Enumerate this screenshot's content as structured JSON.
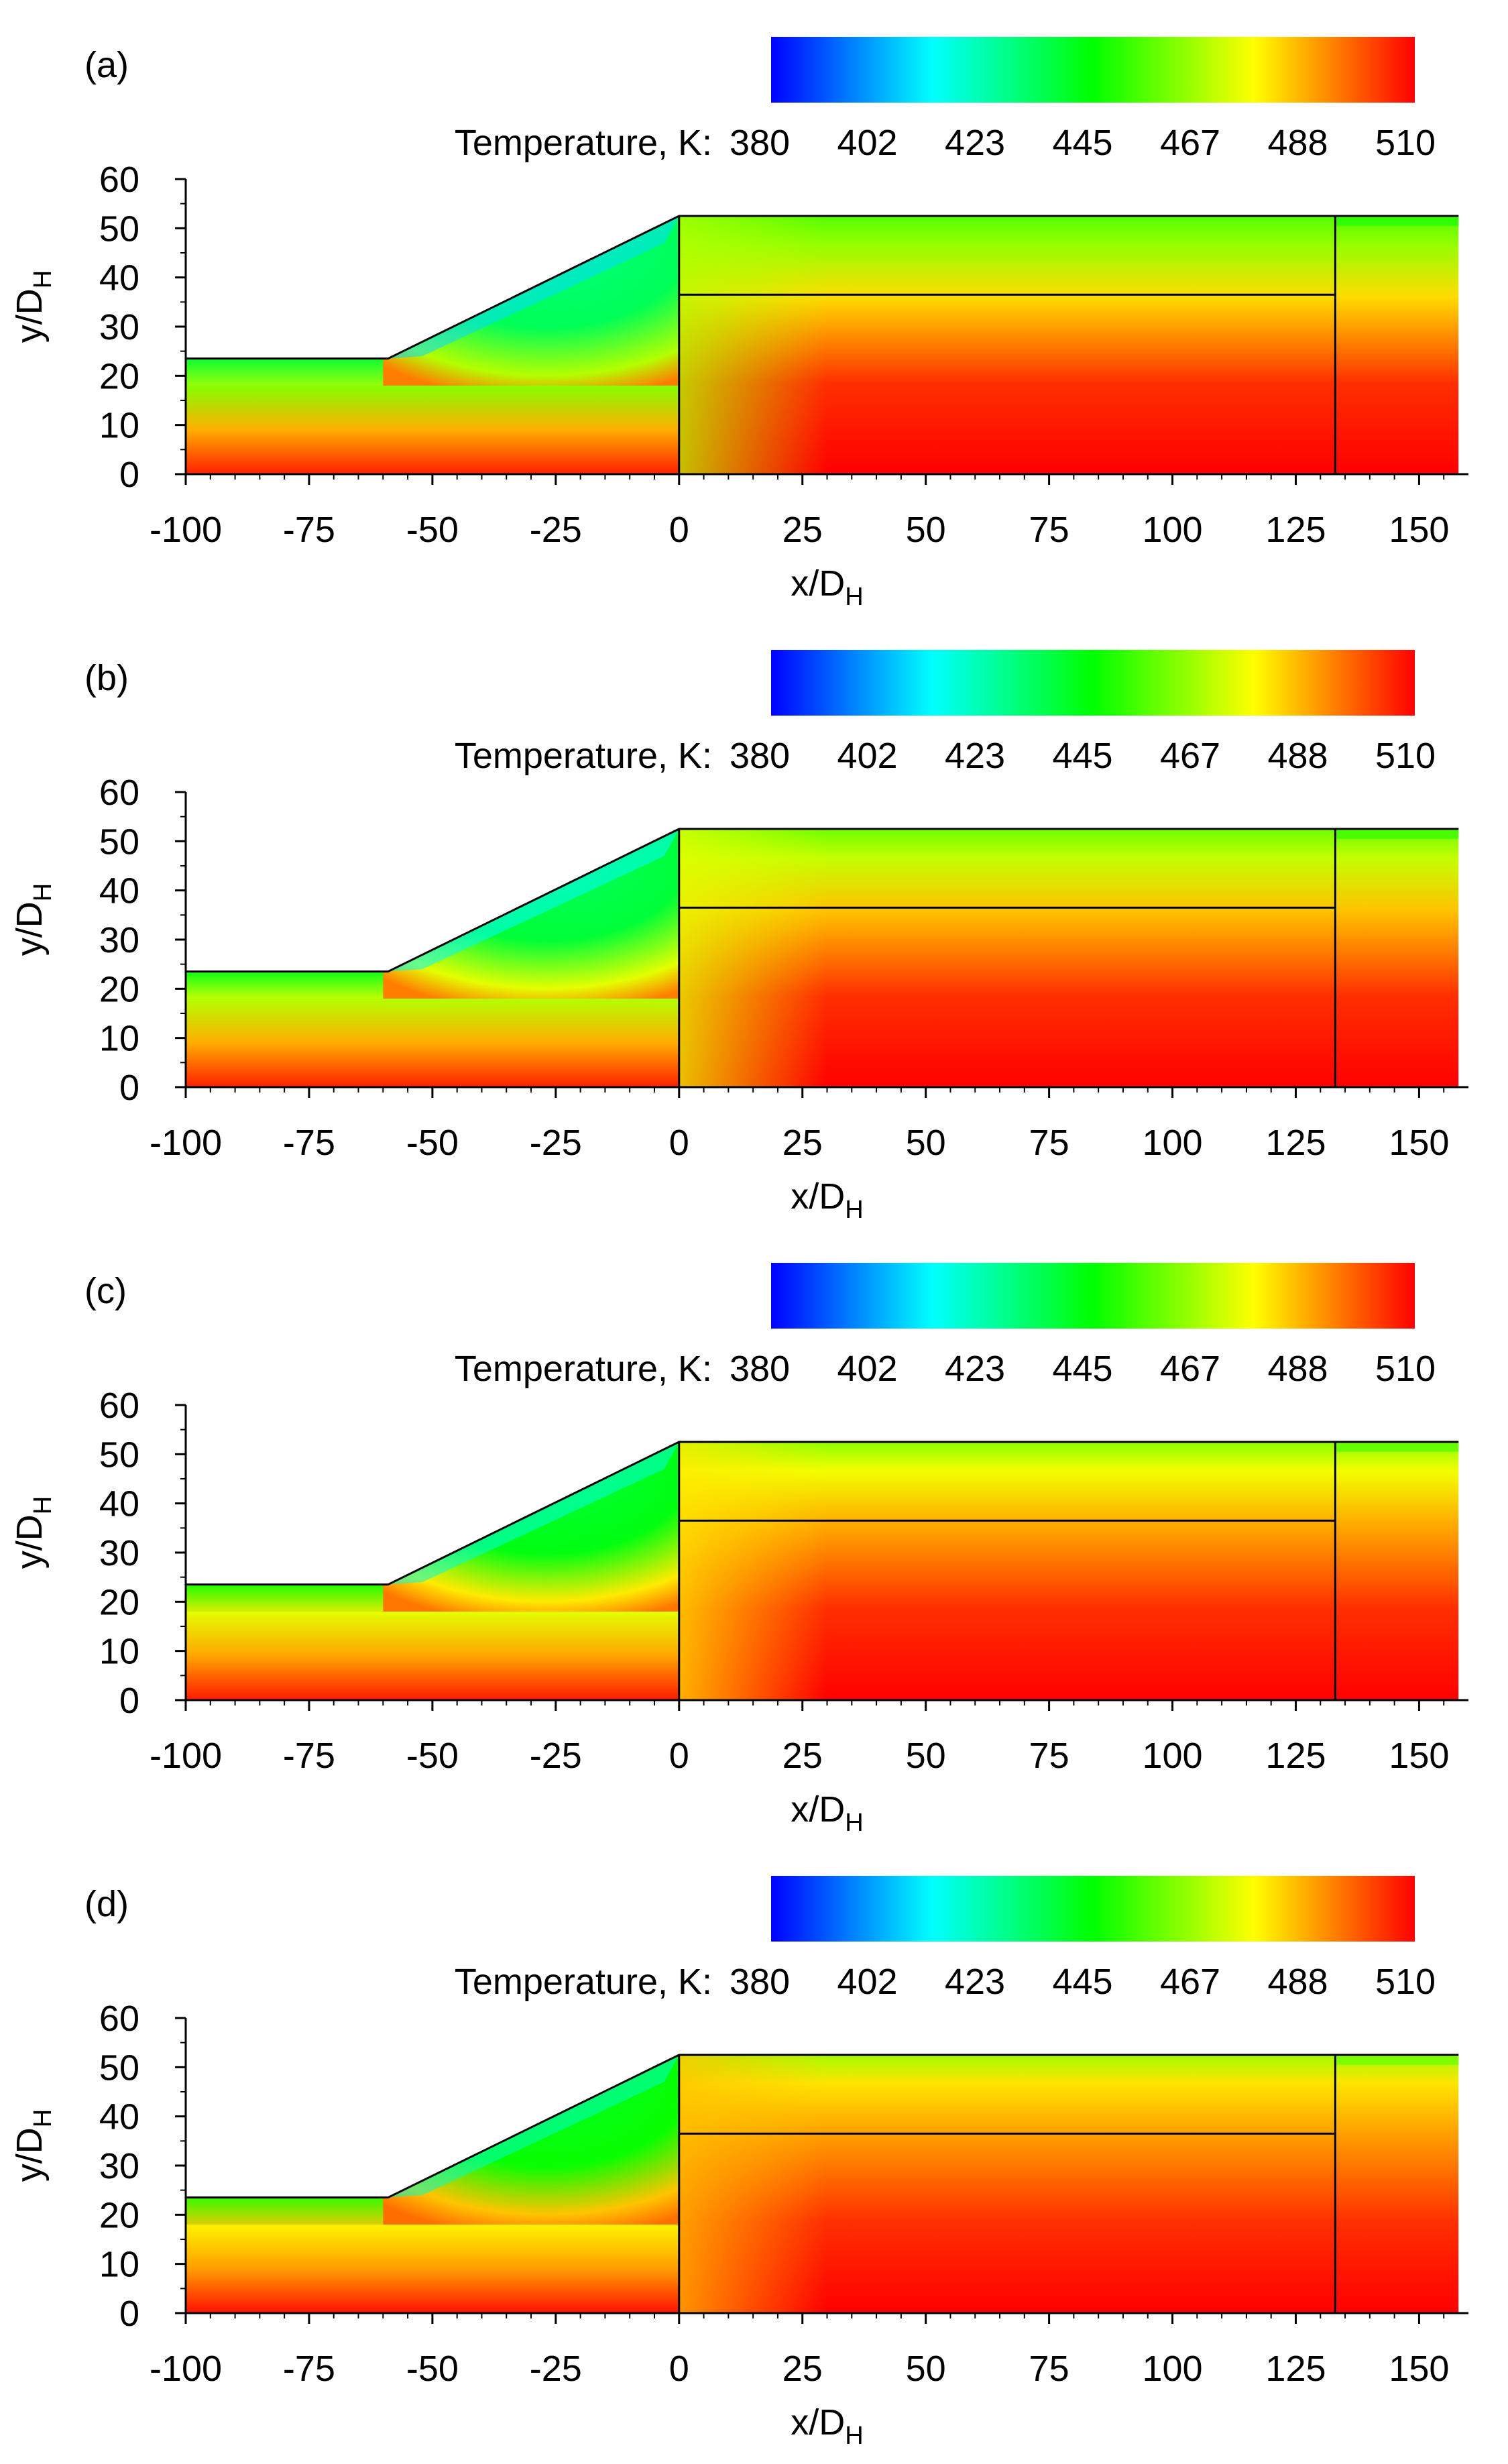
{
  "chart_data": [
    {
      "type": "heatmap",
      "panel_label": "(a)",
      "colorbar": {
        "title": "Temperature, K:",
        "ticks": [
          "380",
          "402",
          "423",
          "445",
          "467",
          "488",
          "510"
        ],
        "range": [
          380,
          510
        ],
        "colors": [
          "#0000ff",
          "#00ffff",
          "#00ff00",
          "#ffff00",
          "#ff0000"
        ]
      },
      "xlabel": "x/D",
      "xlabel_sub": "H",
      "ylabel": "y/D",
      "ylabel_sub": "H",
      "xlim": [
        -100,
        160
      ],
      "ylim": [
        0,
        60
      ],
      "xticks": [
        "-100",
        "-75",
        "-50",
        "-25",
        "0",
        "25",
        "50",
        "75",
        "100",
        "125",
        "150"
      ],
      "yticks": [
        "0",
        "10",
        "20",
        "30",
        "40",
        "50",
        "60"
      ],
      "inlet_centre_K": 504,
      "cool_core_K": 428,
      "bulk_K": 468,
      "wall_K": 455,
      "hot_core_K": 510,
      "edge_K": 482
    },
    {
      "type": "heatmap",
      "panel_label": "(b)",
      "colorbar": {
        "title": "Temperature, K:",
        "ticks": [
          "380",
          "402",
          "423",
          "445",
          "467",
          "488",
          "510"
        ],
        "range": [
          380,
          510
        ],
        "colors": [
          "#0000ff",
          "#00ffff",
          "#00ff00",
          "#ffff00",
          "#ff0000"
        ]
      },
      "xlabel": "x/D",
      "xlabel_sub": "H",
      "ylabel": "y/D",
      "ylabel_sub": "H",
      "xlim": [
        -100,
        160
      ],
      "ylim": [
        0,
        60
      ],
      "xticks": [
        "-100",
        "-75",
        "-50",
        "-25",
        "0",
        "25",
        "50",
        "75",
        "100",
        "125",
        "150"
      ],
      "yticks": [
        "0",
        "10",
        "20",
        "30",
        "40",
        "50",
        "60"
      ],
      "inlet_centre_K": 504,
      "cool_core_K": 432,
      "bulk_K": 474,
      "wall_K": 458,
      "hot_core_K": 510,
      "edge_K": 485
    },
    {
      "type": "heatmap",
      "panel_label": "(c)",
      "colorbar": {
        "title": "Temperature, K:",
        "ticks": [
          "380",
          "402",
          "423",
          "445",
          "467",
          "488",
          "510"
        ],
        "range": [
          380,
          510
        ],
        "colors": [
          "#0000ff",
          "#00ffff",
          "#00ff00",
          "#ffff00",
          "#ff0000"
        ]
      },
      "xlabel": "x/D",
      "xlabel_sub": "H",
      "ylabel": "y/D",
      "ylabel_sub": "H",
      "xlim": [
        -100,
        160
      ],
      "ylim": [
        0,
        60
      ],
      "xticks": [
        "-100",
        "-75",
        "-50",
        "-25",
        "0",
        "25",
        "50",
        "75",
        "100",
        "125",
        "150"
      ],
      "yticks": [
        "0",
        "10",
        "20",
        "30",
        "40",
        "50",
        "60"
      ],
      "inlet_centre_K": 505,
      "cool_core_K": 437,
      "bulk_K": 480,
      "wall_K": 462,
      "hot_core_K": 510,
      "edge_K": 488
    },
    {
      "type": "heatmap",
      "panel_label": "(d)",
      "colorbar": {
        "title": "Temperature, K:",
        "ticks": [
          "380",
          "402",
          "423",
          "445",
          "467",
          "488",
          "510"
        ],
        "range": [
          380,
          510
        ],
        "colors": [
          "#0000ff",
          "#00ffff",
          "#00ff00",
          "#ffff00",
          "#ff0000"
        ]
      },
      "xlabel": "x/D",
      "xlabel_sub": "H",
      "ylabel": "y/D",
      "ylabel_sub": "H",
      "xlim": [
        -100,
        160
      ],
      "ylim": [
        0,
        60
      ],
      "xticks": [
        "-100",
        "-75",
        "-50",
        "-25",
        "0",
        "25",
        "50",
        "75",
        "100",
        "125",
        "150"
      ],
      "yticks": [
        "0",
        "10",
        "20",
        "30",
        "40",
        "50",
        "60"
      ],
      "inlet_centre_K": 506,
      "cool_core_K": 440,
      "bulk_K": 485,
      "wall_K": 465,
      "hot_core_K": 510,
      "edge_K": 490
    }
  ]
}
